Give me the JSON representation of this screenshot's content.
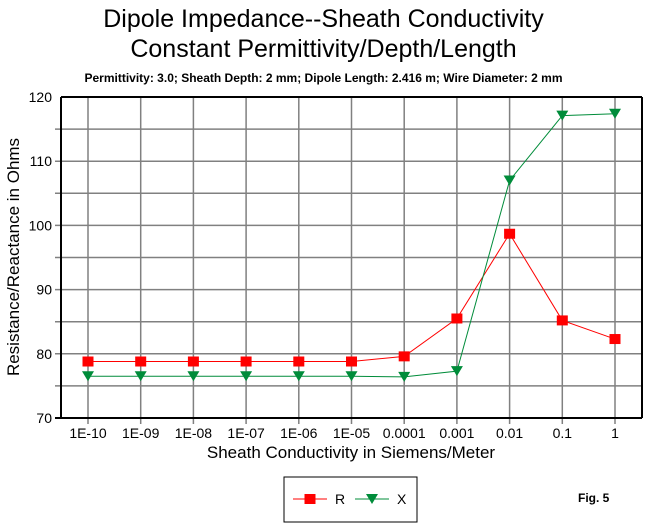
{
  "chart_data": {
    "type": "line",
    "title": "Dipole Impedance--Sheath Conductivity",
    "subtitle_line2": "Constant Permittivity/Depth/Length",
    "caption": "Permittivity: 3.0;  Sheath Depth: 2 mm; Dipole Length:  2.416 m; Wire Diameter: 2 mm",
    "xlabel": "Sheath Conductivity in Siemens/Meter",
    "ylabel": "Resistance/Reactance in Ohms",
    "categories": [
      "1E-10",
      "1E-09",
      "1E-08",
      "1E-07",
      "1E-06",
      "1E-05",
      "0.0001",
      "0.001",
      "0.01",
      "0.1",
      "1"
    ],
    "ylim": [
      70,
      120
    ],
    "yticks": [
      70,
      80,
      90,
      100,
      110,
      120
    ],
    "ygrid_step": 5,
    "grid": true,
    "legend_position": "bottom-center",
    "series": [
      {
        "name": "R",
        "color": "#ff0000",
        "marker": "square",
        "values": [
          78.8,
          78.8,
          78.8,
          78.8,
          78.8,
          78.8,
          79.6,
          85.5,
          98.7,
          85.2,
          82.3
        ]
      },
      {
        "name": "X",
        "color": "#008c3a",
        "marker": "triangle-down",
        "values": [
          76.5,
          76.5,
          76.5,
          76.5,
          76.5,
          76.5,
          76.4,
          77.3,
          107.0,
          117.1,
          117.4
        ]
      }
    ],
    "figure_label": "Fig. 5"
  }
}
